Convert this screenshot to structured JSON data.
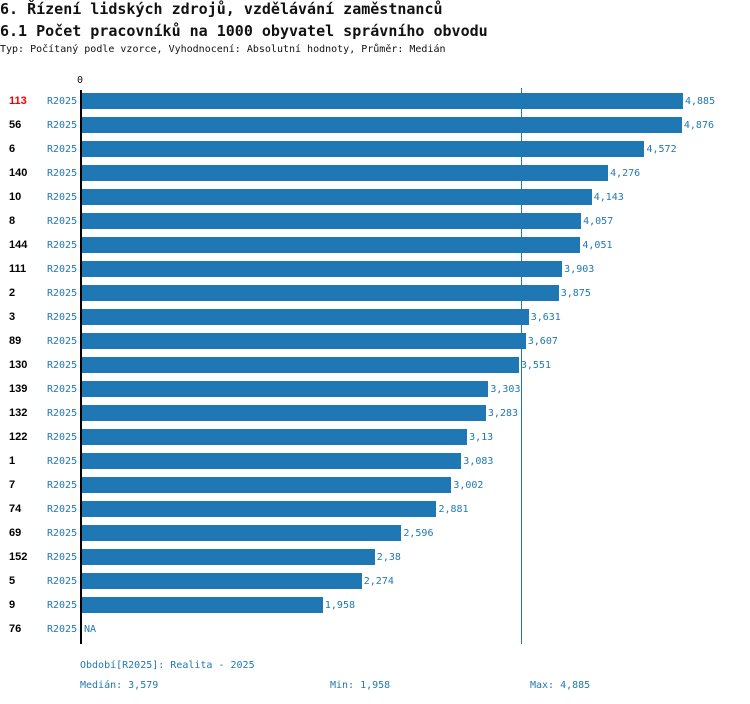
{
  "header": {
    "title": "6. Řízení lidských zdrojů, vzdělávání zaměstnanců",
    "subtitle": "6.1 Počet pracovníků na 1000 obyvatel správního obvodu",
    "type_line": "Typ: Počítaný podle vzorce, Vyhodnocení: Absolutní hodnoty, Průměr: Medián"
  },
  "chart_data": {
    "type": "bar",
    "orientation": "horizontal",
    "axis_zero_label": "0",
    "xlim": [
      0,
      4.885
    ],
    "median": 3.579,
    "highlight_color": "#ee0000",
    "bar_color": "#1f77b4",
    "rows": [
      {
        "id": "113",
        "period": "R2025",
        "value": 4.885,
        "label": "4,885",
        "highlight": true
      },
      {
        "id": "56",
        "period": "R2025",
        "value": 4.876,
        "label": "4,876"
      },
      {
        "id": "6",
        "period": "R2025",
        "value": 4.572,
        "label": "4,572"
      },
      {
        "id": "140",
        "period": "R2025",
        "value": 4.276,
        "label": "4,276"
      },
      {
        "id": "10",
        "period": "R2025",
        "value": 4.143,
        "label": "4,143"
      },
      {
        "id": "8",
        "period": "R2025",
        "value": 4.057,
        "label": "4,057"
      },
      {
        "id": "144",
        "period": "R2025",
        "value": 4.051,
        "label": "4,051"
      },
      {
        "id": "111",
        "period": "R2025",
        "value": 3.903,
        "label": "3,903"
      },
      {
        "id": "2",
        "period": "R2025",
        "value": 3.875,
        "label": "3,875"
      },
      {
        "id": "3",
        "period": "R2025",
        "value": 3.631,
        "label": "3,631"
      },
      {
        "id": "89",
        "period": "R2025",
        "value": 3.607,
        "label": "3,607"
      },
      {
        "id": "130",
        "period": "R2025",
        "value": 3.551,
        "label": "3,551"
      },
      {
        "id": "139",
        "period": "R2025",
        "value": 3.303,
        "label": "3,303"
      },
      {
        "id": "132",
        "period": "R2025",
        "value": 3.283,
        "label": "3,283"
      },
      {
        "id": "122",
        "period": "R2025",
        "value": 3.13,
        "label": "3,13"
      },
      {
        "id": "1",
        "period": "R2025",
        "value": 3.083,
        "label": "3,083"
      },
      {
        "id": "7",
        "period": "R2025",
        "value": 3.002,
        "label": "3,002"
      },
      {
        "id": "74",
        "period": "R2025",
        "value": 2.881,
        "label": "2,881"
      },
      {
        "id": "69",
        "period": "R2025",
        "value": 2.596,
        "label": "2,596"
      },
      {
        "id": "152",
        "period": "R2025",
        "value": 2.38,
        "label": "2,38"
      },
      {
        "id": "5",
        "period": "R2025",
        "value": 2.274,
        "label": "2,274"
      },
      {
        "id": "9",
        "period": "R2025",
        "value": 1.958,
        "label": "1,958"
      },
      {
        "id": "76",
        "period": "R2025",
        "value": null,
        "label": "NA"
      }
    ]
  },
  "footer": {
    "period": "Období[R2025]: Realita - 2025",
    "median": "Medián: 3,579",
    "min": "Min: 1,958",
    "max": "Max: 4,885"
  }
}
